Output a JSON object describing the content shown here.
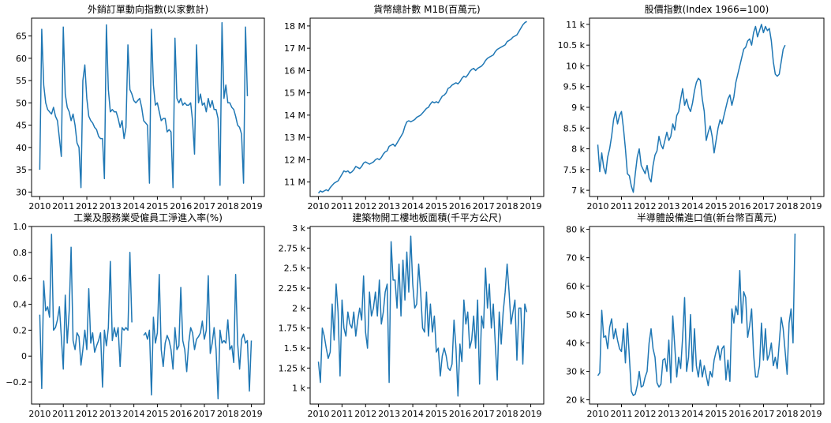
{
  "chart_data": [
    {
      "type": "line",
      "title": "外銷訂單動向指數(以家數計)",
      "xlabel": "",
      "ylabel": "",
      "xlim": [
        2009.65,
        2019.55
      ],
      "ylim": [
        29.0,
        69.0
      ],
      "x_ticks": [
        2010,
        2011,
        2012,
        2013,
        2014,
        2015,
        2016,
        2017,
        2018,
        2019
      ],
      "y_ticks": [
        {
          "v": 30,
          "label": "30"
        },
        {
          "v": 35,
          "label": "35"
        },
        {
          "v": 40,
          "label": "40"
        },
        {
          "v": 45,
          "label": "45"
        },
        {
          "v": 50,
          "label": "50"
        },
        {
          "v": 55,
          "label": "55"
        },
        {
          "v": 60,
          "label": "60"
        },
        {
          "v": 65,
          "label": "65"
        }
      ],
      "x_start": 2010.0,
      "x_step": 0.0833,
      "series": [
        {
          "values": [
            35,
            66.5,
            54,
            50,
            48.5,
            48,
            47.5,
            49,
            47,
            46,
            42,
            38,
            67,
            52,
            49,
            48,
            46,
            47.5,
            45,
            41,
            40,
            31,
            55,
            58.5,
            51,
            47,
            46,
            45.5,
            44.5,
            44,
            42.5,
            42,
            42,
            33,
            67.5,
            53,
            48,
            48.5,
            48,
            48,
            46.5,
            44.5,
            46,
            42,
            44.5,
            63,
            53,
            52,
            50.5,
            50,
            50.5,
            51,
            49,
            46,
            45.5,
            45,
            32,
            66.5,
            54,
            49.5,
            50,
            48,
            46,
            46.5,
            46.5,
            43.5,
            44,
            43.5,
            31,
            64.5,
            51,
            50,
            51,
            49.5,
            50,
            49.5,
            49.5,
            50,
            46,
            38.5,
            63,
            50,
            52,
            49.5,
            50,
            48,
            51,
            49,
            50.5,
            48.5,
            48.5,
            46.5,
            31.5,
            68,
            51,
            54,
            50,
            50,
            49,
            48.5,
            47,
            45,
            44.5,
            43,
            32,
            67,
            51.5
          ]
        }
      ]
    },
    {
      "type": "line",
      "title": "貨幣總計數 M1B(百萬元)",
      "xlabel": "",
      "ylabel": "",
      "xlim": [
        2009.65,
        2019.55
      ],
      "ylim": [
        10.35,
        18.35
      ],
      "x_ticks": [
        2010,
        2011,
        2012,
        2013,
        2014,
        2015,
        2016,
        2017,
        2018,
        2019
      ],
      "y_ticks": [
        {
          "v": 11,
          "label": "11 M"
        },
        {
          "v": 12,
          "label": "12 M"
        },
        {
          "v": 13,
          "label": "13 M"
        },
        {
          "v": 14,
          "label": "14 M"
        },
        {
          "v": 15,
          "label": "15 M"
        },
        {
          "v": 16,
          "label": "16 M"
        },
        {
          "v": 17,
          "label": "17 M"
        },
        {
          "v": 18,
          "label": "18 M"
        }
      ],
      "x_start": 2010.0,
      "x_step": 0.0833,
      "series": [
        {
          "values": [
            10.5,
            10.6,
            10.55,
            10.6,
            10.65,
            10.6,
            10.75,
            10.85,
            10.95,
            11.0,
            11.05,
            11.2,
            11.35,
            11.5,
            11.45,
            11.5,
            11.4,
            11.45,
            11.55,
            11.7,
            11.65,
            11.6,
            11.7,
            11.85,
            11.9,
            11.85,
            11.8,
            11.85,
            11.9,
            12.0,
            12.05,
            12.0,
            12.1,
            12.25,
            12.35,
            12.4,
            12.6,
            12.65,
            12.7,
            12.6,
            12.75,
            12.9,
            13.05,
            13.2,
            13.5,
            13.7,
            13.75,
            13.7,
            13.75,
            13.8,
            13.9,
            13.95,
            14.0,
            14.1,
            14.2,
            14.3,
            14.35,
            14.5,
            14.6,
            14.55,
            14.6,
            14.55,
            14.7,
            14.85,
            14.9,
            15.0,
            15.2,
            15.25,
            15.35,
            15.4,
            15.45,
            15.4,
            15.5,
            15.65,
            15.75,
            15.7,
            15.8,
            15.95,
            16.05,
            16.1,
            16.0,
            16.1,
            16.15,
            16.2,
            16.3,
            16.45,
            16.55,
            16.6,
            16.65,
            16.7,
            16.85,
            16.95,
            17.0,
            17.05,
            17.1,
            17.15,
            17.3,
            17.35,
            17.4,
            17.5,
            17.55,
            17.6,
            17.75,
            17.9,
            18.05,
            18.15,
            18.2
          ]
        }
      ]
    },
    {
      "type": "line",
      "title": "股價指數(Index 1966=100)",
      "xlabel": "",
      "ylabel": "",
      "xlim": [
        2009.65,
        2019.55
      ],
      "ylim": [
        6.85,
        11.15
      ],
      "x_ticks": [
        2010,
        2011,
        2012,
        2013,
        2014,
        2015,
        2016,
        2017,
        2018,
        2019
      ],
      "y_ticks": [
        {
          "v": 7,
          "label": "7 k"
        },
        {
          "v": 7.5,
          "label": "7.5 k"
        },
        {
          "v": 8,
          "label": "8 k"
        },
        {
          "v": 8.5,
          "label": "8.5 k"
        },
        {
          "v": 9,
          "label": "9 k"
        },
        {
          "v": 9.5,
          "label": "9.5 k"
        },
        {
          "v": 10,
          "label": "10 k"
        },
        {
          "v": 10.5,
          "label": "10.5 k"
        },
        {
          "v": 11,
          "label": "11 k"
        }
      ],
      "x_start": 2010.0,
      "x_step": 0.0833,
      "series": [
        {
          "values": [
            8.1,
            7.45,
            7.9,
            7.55,
            7.4,
            7.8,
            8.0,
            8.3,
            8.7,
            8.9,
            8.6,
            8.8,
            8.9,
            8.5,
            8.0,
            7.4,
            7.35,
            7.1,
            6.95,
            7.4,
            7.8,
            8.0,
            7.6,
            7.5,
            7.4,
            7.6,
            7.3,
            7.2,
            7.6,
            7.85,
            7.95,
            8.3,
            8.1,
            8.0,
            8.2,
            8.4,
            8.2,
            8.3,
            8.6,
            8.45,
            8.8,
            8.9,
            9.2,
            9.45,
            9.05,
            9.2,
            9.0,
            8.9,
            9.1,
            9.4,
            9.6,
            9.7,
            9.65,
            9.2,
            8.9,
            8.2,
            8.4,
            8.55,
            8.3,
            7.9,
            8.2,
            8.5,
            8.7,
            8.6,
            8.8,
            9.0,
            9.2,
            9.3,
            9.05,
            9.25,
            9.6,
            9.8,
            10.0,
            10.2,
            10.4,
            10.45,
            10.6,
            10.65,
            10.5,
            10.8,
            10.95,
            10.7,
            10.85,
            11.0,
            10.8,
            10.95,
            10.85,
            10.9,
            10.6,
            10.1,
            9.8,
            9.75,
            9.8,
            10.1,
            10.4,
            10.5
          ]
        }
      ]
    },
    {
      "type": "line",
      "title": "工業及服務業受僱員工淨進入率(%)",
      "xlabel": "",
      "ylabel": "",
      "xlim": [
        2009.65,
        2019.55
      ],
      "ylim": [
        -0.37,
        1.0
      ],
      "x_ticks": [
        2010,
        2011,
        2012,
        2013,
        2014,
        2015,
        2016,
        2017,
        2018,
        2019
      ],
      "y_ticks": [
        {
          "v": -0.2,
          "label": "−0.2"
        },
        {
          "v": 0,
          "label": "0"
        },
        {
          "v": 0.2,
          "label": "0.2"
        },
        {
          "v": 0.4,
          "label": "0.4"
        },
        {
          "v": 0.6,
          "label": "0.6"
        },
        {
          "v": 0.8,
          "label": "0.8"
        },
        {
          "v": 1.0,
          "label": "1.0"
        }
      ],
      "x_start": 2010.0,
      "x_step": 0.0833,
      "series": [
        {
          "values": [
            0.32,
            -0.25,
            0.58,
            0.35,
            0.38,
            0.3,
            0.94,
            0.2,
            0.22,
            0.28,
            0.38,
            0.15,
            -0.1,
            0.47,
            0.1,
            0.35,
            0.84,
            0.12,
            0.05,
            0.18,
            0.15,
            -0.07,
            0.05,
            0.2,
            0.05,
            0.52,
            0.1,
            0.18,
            0.03,
            0.08,
            0.12,
            0.18,
            -0.24,
            0.2,
            0.08,
            0.22,
            0.73,
            0.12,
            0.22,
            0.15,
            0.22,
            -0.08,
            0.22,
            0.2,
            0.22,
            0.2,
            0.8,
            0.26,
            null,
            null,
            null,
            null,
            null,
            0.16,
            0.18,
            0.13,
            0.2,
            -0.3,
            0.3,
            0.1,
            0.18,
            0.63,
            0.05,
            -0.08,
            0.1,
            0.16,
            0.12,
            0.05,
            -0.1,
            0.22,
            0.05,
            0.08,
            0.53,
            0.12,
            0.05,
            -0.12,
            0.1,
            0.22,
            0.18,
            0.05,
            0.13,
            0.15,
            0.18,
            0.27,
            0.13,
            0.2,
            0.62,
            0.02,
            0.1,
            0.22,
            0.05,
            -0.33,
            0.2,
            0.1,
            0.12,
            0.1,
            0.28,
            0.05,
            0.08,
            -0.05,
            0.63,
            0.1,
            -0.1,
            0.13,
            0.17,
            0.1,
            0.12,
            -0.27,
            0.12
          ]
        }
      ]
    },
    {
      "type": "line",
      "title": "建築物開工樓地板面積(千平方公尺)",
      "xlabel": "",
      "ylabel": "",
      "xlim": [
        2009.65,
        2019.55
      ],
      "ylim": [
        0.8,
        3.02
      ],
      "x_ticks": [
        2010,
        2011,
        2012,
        2013,
        2014,
        2015,
        2016,
        2017,
        2018,
        2019
      ],
      "y_ticks": [
        {
          "v": 1,
          "label": "1 k"
        },
        {
          "v": 1.25,
          "label": "1.25 k"
        },
        {
          "v": 1.5,
          "label": "1.5 k"
        },
        {
          "v": 1.75,
          "label": "1.75 k"
        },
        {
          "v": 2,
          "label": "2 k"
        },
        {
          "v": 2.25,
          "label": "2.25 k"
        },
        {
          "v": 2.5,
          "label": "2.5 k"
        },
        {
          "v": 2.75,
          "label": "2.75 k"
        },
        {
          "v": 3,
          "label": "3 k"
        }
      ],
      "x_start": 2010.0,
      "x_step": 0.0833,
      "series": [
        {
          "values": [
            1.33,
            1.07,
            1.75,
            1.65,
            1.5,
            1.37,
            1.45,
            2.05,
            1.6,
            2.3,
            1.95,
            1.15,
            2.1,
            1.75,
            1.65,
            1.95,
            1.8,
            1.75,
            1.95,
            1.65,
            1.85,
            2.0,
            1.85,
            2.4,
            1.7,
            1.5,
            2.2,
            1.9,
            2.0,
            2.2,
            1.9,
            2.35,
            1.8,
            1.95,
            2.2,
            2.3,
            1.07,
            2.83,
            2.35,
            2.35,
            2.0,
            2.55,
            1.9,
            2.6,
            2.1,
            2.7,
            2.2,
            2.9,
            2.3,
            2.0,
            2.05,
            2.55,
            2.2,
            1.75,
            1.7,
            2.2,
            1.65,
            2.05,
            1.7,
            1.9,
            1.45,
            1.5,
            1.15,
            1.4,
            1.5,
            1.4,
            1.25,
            1.22,
            1.3,
            1.85,
            1.5,
            0.9,
            1.55,
            1.33,
            2.1,
            1.8,
            1.95,
            1.5,
            1.6,
            1.9,
            1.5,
            2.1,
            1.05,
            1.9,
            1.75,
            2.5,
            2.0,
            2.3,
            1.75,
            2.05,
            1.55,
            1.1,
            1.95,
            1.55,
            1.95,
            2.2,
            2.55,
            2.2,
            1.8,
            1.95,
            2.1,
            1.35,
            2.0,
            2.0,
            1.3,
            2.05,
            1.95
          ]
        }
      ]
    },
    {
      "type": "line",
      "title": "半導體設備進口值(新台幣百萬元)",
      "xlabel": "",
      "ylabel": "",
      "xlim": [
        2009.65,
        2019.55
      ],
      "ylim": [
        18.5,
        81.0
      ],
      "x_ticks": [
        2010,
        2011,
        2012,
        2013,
        2014,
        2015,
        2016,
        2017,
        2018,
        2019
      ],
      "y_ticks": [
        {
          "v": 20,
          "label": "20 k"
        },
        {
          "v": 30,
          "label": "30 k"
        },
        {
          "v": 40,
          "label": "40 k"
        },
        {
          "v": 50,
          "label": "50 k"
        },
        {
          "v": 60,
          "label": "60 k"
        },
        {
          "v": 70,
          "label": "70 k"
        },
        {
          "v": 80,
          "label": "80 k"
        }
      ],
      "x_start": 2010.0,
      "x_step": 0.0833,
      "series": [
        {
          "values": [
            28.5,
            29.5,
            51.5,
            42,
            42.5,
            38,
            45.5,
            48.5,
            41.5,
            45,
            41,
            38,
            37,
            45,
            33,
            47,
            35,
            23,
            21.5,
            22,
            25,
            30,
            24.5,
            25,
            28,
            30,
            40,
            45,
            38,
            35,
            26,
            24.5,
            25.5,
            34,
            34.5,
            30,
            41,
            26,
            49.5,
            39,
            28,
            35,
            31,
            42,
            56,
            30,
            35,
            50,
            30,
            45,
            32,
            28,
            34,
            28,
            32,
            28.5,
            25,
            30,
            28,
            34,
            37,
            39,
            34,
            38,
            39,
            27,
            34,
            26.5,
            52,
            47,
            53,
            50,
            65.5,
            47,
            58,
            56,
            42,
            46,
            52,
            36,
            28,
            28,
            32,
            47,
            34,
            45,
            34,
            36,
            40,
            32,
            35,
            31,
            40,
            49,
            45,
            37,
            29,
            47,
            52,
            40,
            78.5
          ]
        }
      ]
    }
  ]
}
